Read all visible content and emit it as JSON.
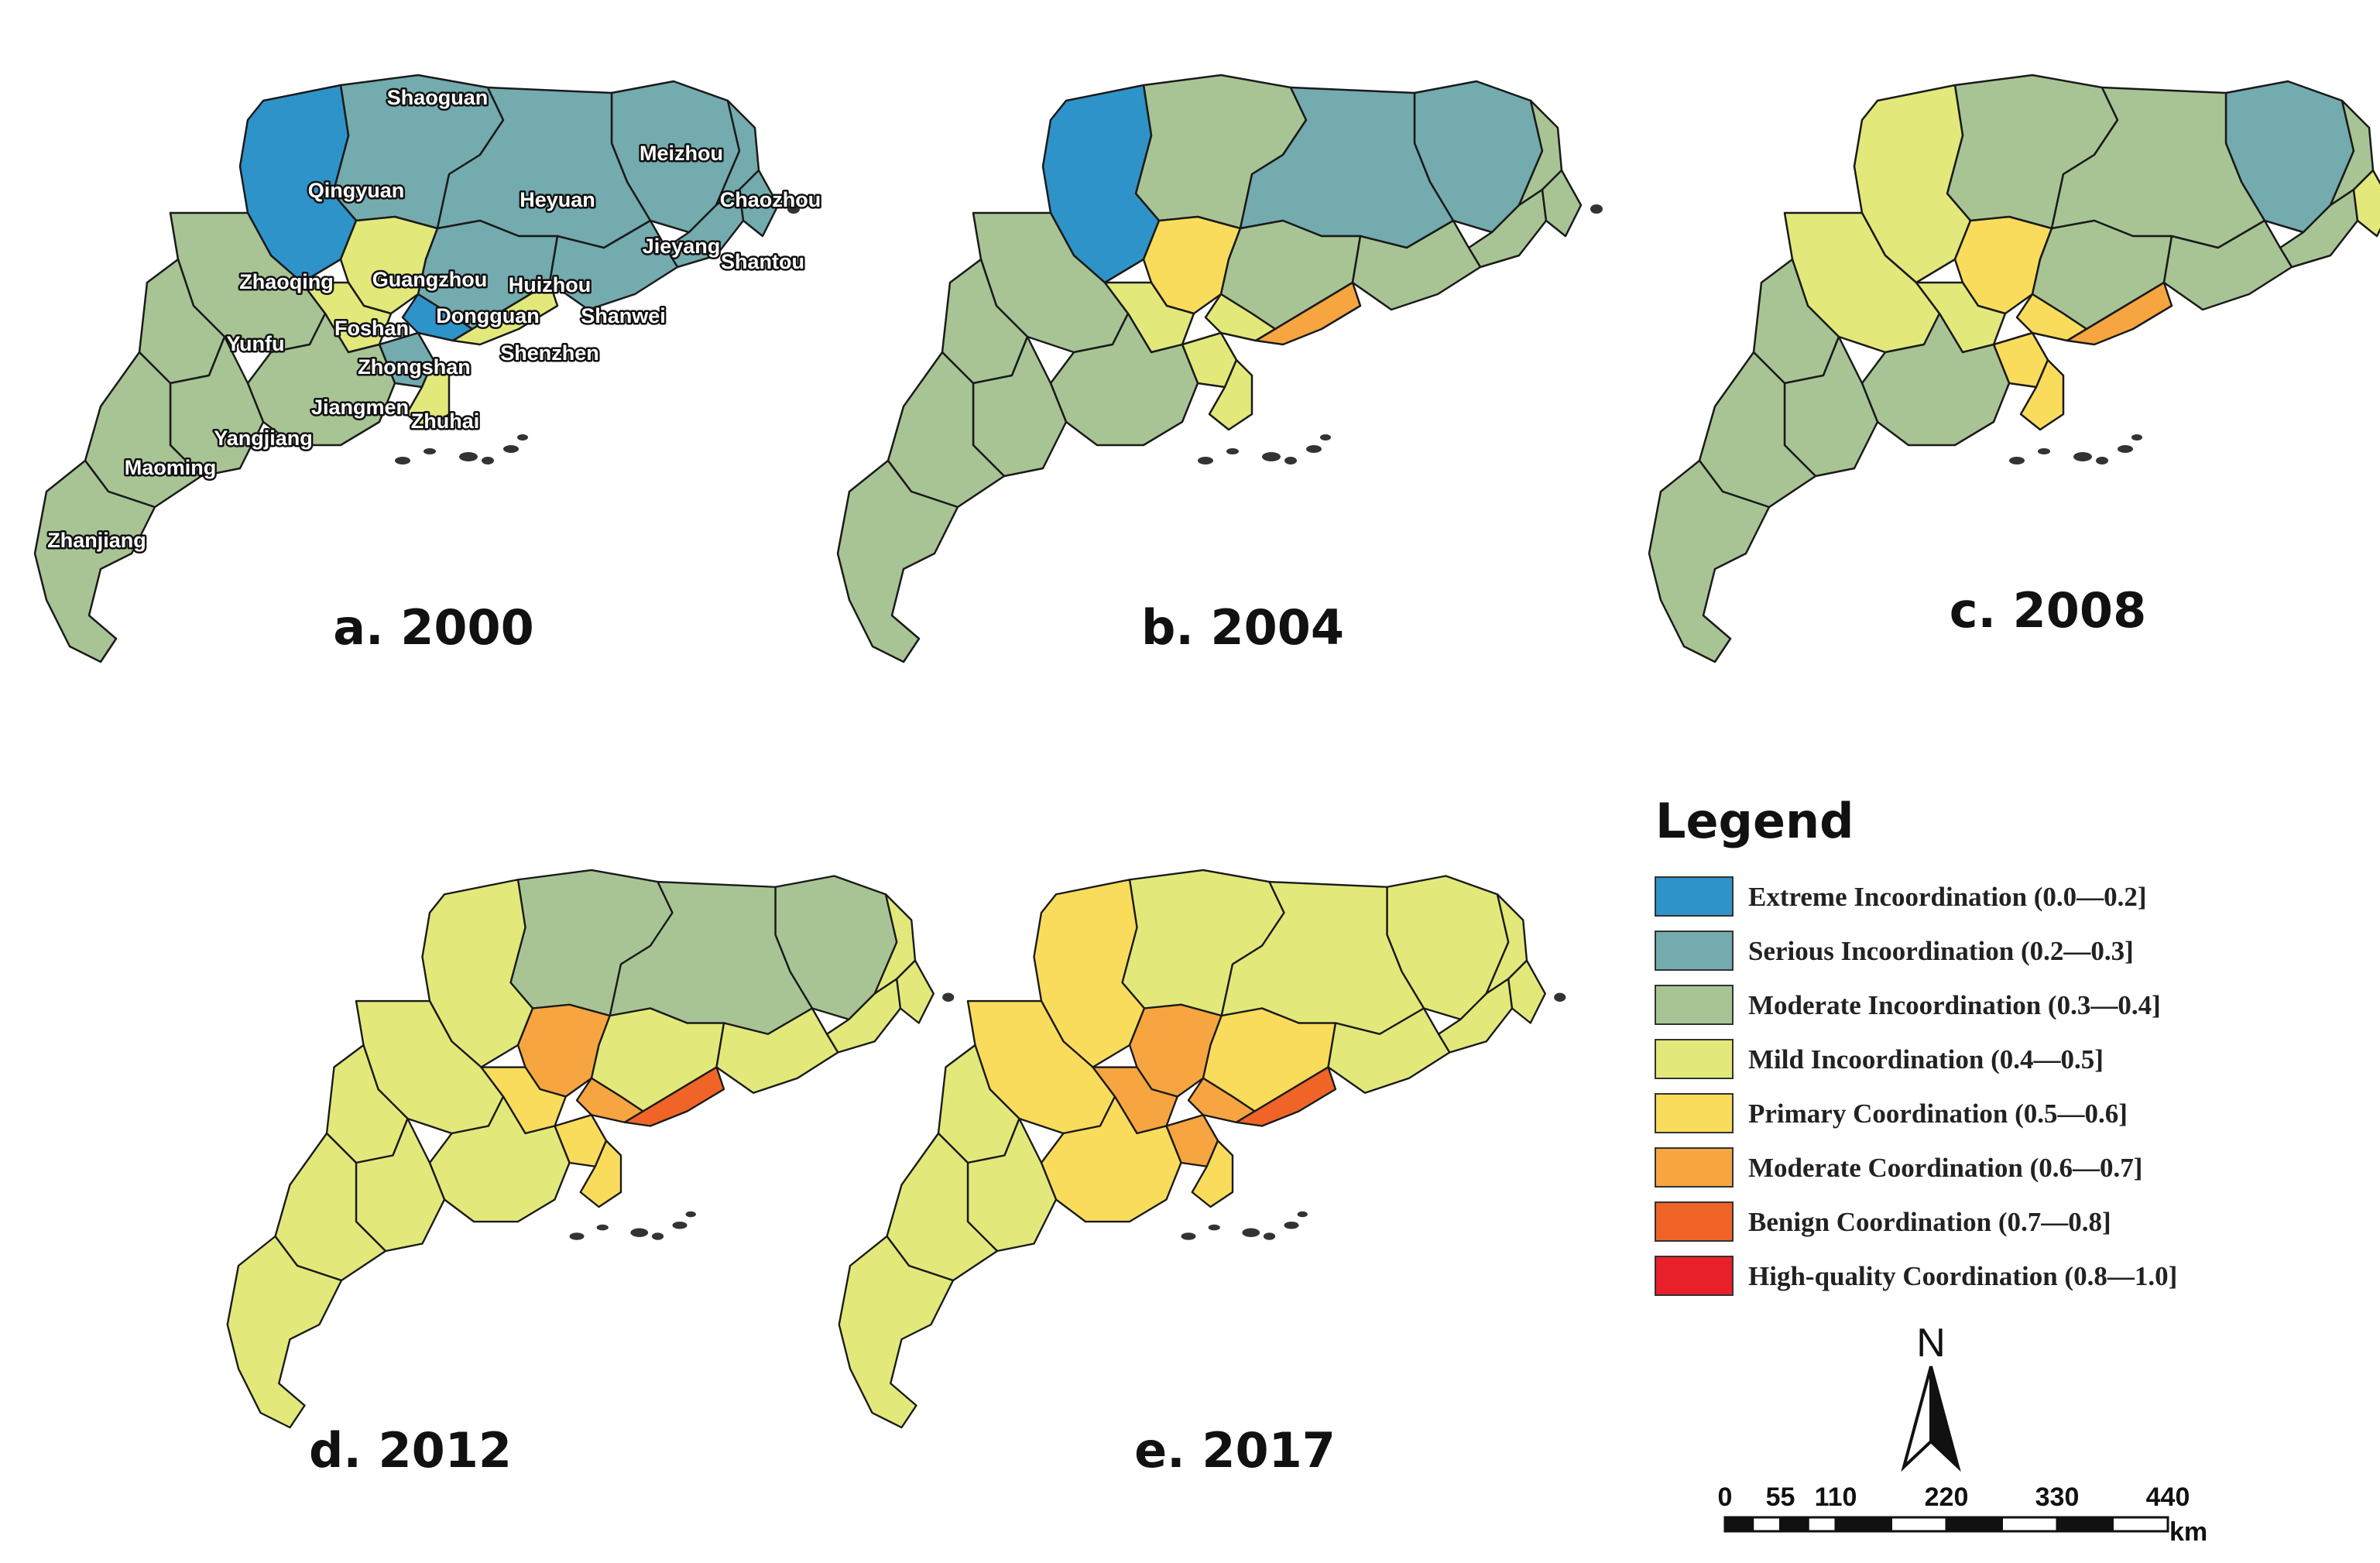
{
  "colors": {
    "extreme": "#2E93C9",
    "serious": "#73ABAE",
    "moderate_inc": "#A8C495",
    "mild": "#E2E97A",
    "primary": "#F9DC5C",
    "moderate_coord": "#F6A540",
    "benign": "#F06427",
    "high": "#E8202A"
  },
  "legend": {
    "title": "Legend",
    "items": [
      {
        "key": "extreme",
        "label": "Extreme Incoordination (0.0—0.2]"
      },
      {
        "key": "serious",
        "label": "Serious Incoordination (0.2—0.3]"
      },
      {
        "key": "moderate_inc",
        "label": "Moderate Incoordination (0.3—0.4]"
      },
      {
        "key": "mild",
        "label": "Mild Incoordination (0.4—0.5]"
      },
      {
        "key": "primary",
        "label": "Primary Coordination (0.5—0.6]"
      },
      {
        "key": "moderate_coord",
        "label": "Moderate Coordination (0.6—0.7]"
      },
      {
        "key": "benign",
        "label": "Benign Coordination (0.7—0.8]"
      },
      {
        "key": "high",
        "label": "High-quality Coordination (0.8—1.0]"
      }
    ]
  },
  "north_arrow": {
    "label": "N"
  },
  "scale_bar": {
    "ticks": [
      "0",
      "55",
      "110",
      "220",
      "330",
      "440"
    ],
    "tick_values_km": [
      0,
      55,
      110,
      220,
      330,
      440
    ],
    "unit": "km"
  },
  "city_names": [
    "Shaoguan",
    "Qingyuan",
    "Meizhou",
    "Heyuan",
    "Chaozhou",
    "Jieyang",
    "Shantou",
    "Zhaoqing",
    "Guangzhou",
    "Huizhou",
    "Dongguan",
    "Shanwei",
    "Yunfu",
    "Foshan",
    "Shenzhen",
    "Zhongshan",
    "Jiangmen",
    "Zhuhai",
    "Yangjiang",
    "Maoming",
    "Zhanjiang"
  ],
  "panels": [
    {
      "title": "a. 2000",
      "show_labels": true,
      "classes": {
        "Shaoguan": "serious",
        "Qingyuan": "extreme",
        "Meizhou": "serious",
        "Heyuan": "serious",
        "Chaozhou": "serious",
        "Jieyang": "serious",
        "Shantou": "serious",
        "Zhaoqing": "moderate_inc",
        "Guangzhou": "mild",
        "Huizhou": "serious",
        "Dongguan": "extreme",
        "Shanwei": "serious",
        "Yunfu": "moderate_inc",
        "Foshan": "mild",
        "Shenzhen": "mild",
        "Zhongshan": "serious",
        "Jiangmen": "moderate_inc",
        "Zhuhai": "mild",
        "Yangjiang": "moderate_inc",
        "Maoming": "moderate_inc",
        "Zhanjiang": "moderate_inc"
      }
    },
    {
      "title": "b. 2004",
      "show_labels": false,
      "classes": {
        "Shaoguan": "moderate_inc",
        "Qingyuan": "extreme",
        "Meizhou": "serious",
        "Heyuan": "serious",
        "Chaozhou": "moderate_inc",
        "Jieyang": "moderate_inc",
        "Shantou": "moderate_inc",
        "Zhaoqing": "moderate_inc",
        "Guangzhou": "primary",
        "Huizhou": "moderate_inc",
        "Dongguan": "mild",
        "Shanwei": "moderate_inc",
        "Yunfu": "moderate_inc",
        "Foshan": "mild",
        "Shenzhen": "moderate_coord",
        "Zhongshan": "mild",
        "Jiangmen": "moderate_inc",
        "Zhuhai": "mild",
        "Yangjiang": "moderate_inc",
        "Maoming": "moderate_inc",
        "Zhanjiang": "moderate_inc"
      }
    },
    {
      "title": "c. 2008",
      "show_labels": false,
      "classes": {
        "Shaoguan": "moderate_inc",
        "Qingyuan": "mild",
        "Meizhou": "serious",
        "Heyuan": "moderate_inc",
        "Chaozhou": "moderate_inc",
        "Jieyang": "moderate_inc",
        "Shantou": "mild",
        "Zhaoqing": "mild",
        "Guangzhou": "primary",
        "Huizhou": "moderate_inc",
        "Dongguan": "primary",
        "Shanwei": "moderate_inc",
        "Yunfu": "moderate_inc",
        "Foshan": "mild",
        "Shenzhen": "moderate_coord",
        "Zhongshan": "primary",
        "Jiangmen": "moderate_inc",
        "Zhuhai": "primary",
        "Yangjiang": "moderate_inc",
        "Maoming": "moderate_inc",
        "Zhanjiang": "moderate_inc"
      }
    },
    {
      "title": "d. 2012",
      "show_labels": false,
      "classes": {
        "Shaoguan": "moderate_inc",
        "Qingyuan": "mild",
        "Meizhou": "moderate_inc",
        "Heyuan": "moderate_inc",
        "Chaozhou": "mild",
        "Jieyang": "mild",
        "Shantou": "mild",
        "Zhaoqing": "mild",
        "Guangzhou": "moderate_coord",
        "Huizhou": "mild",
        "Dongguan": "moderate_coord",
        "Shanwei": "mild",
        "Yunfu": "mild",
        "Foshan": "primary",
        "Shenzhen": "benign",
        "Zhongshan": "primary",
        "Jiangmen": "mild",
        "Zhuhai": "primary",
        "Yangjiang": "mild",
        "Maoming": "mild",
        "Zhanjiang": "mild"
      }
    },
    {
      "title": "e. 2017",
      "show_labels": false,
      "classes": {
        "Shaoguan": "mild",
        "Qingyuan": "primary",
        "Meizhou": "mild",
        "Heyuan": "mild",
        "Chaozhou": "mild",
        "Jieyang": "mild",
        "Shantou": "mild",
        "Zhaoqing": "primary",
        "Guangzhou": "moderate_coord",
        "Huizhou": "primary",
        "Dongguan": "moderate_coord",
        "Shanwei": "mild",
        "Yunfu": "mild",
        "Foshan": "moderate_coord",
        "Shenzhen": "benign",
        "Zhongshan": "moderate_coord",
        "Jiangmen": "primary",
        "Zhuhai": "primary",
        "Yangjiang": "mild",
        "Maoming": "mild",
        "Zhanjiang": "mild"
      }
    }
  ]
}
